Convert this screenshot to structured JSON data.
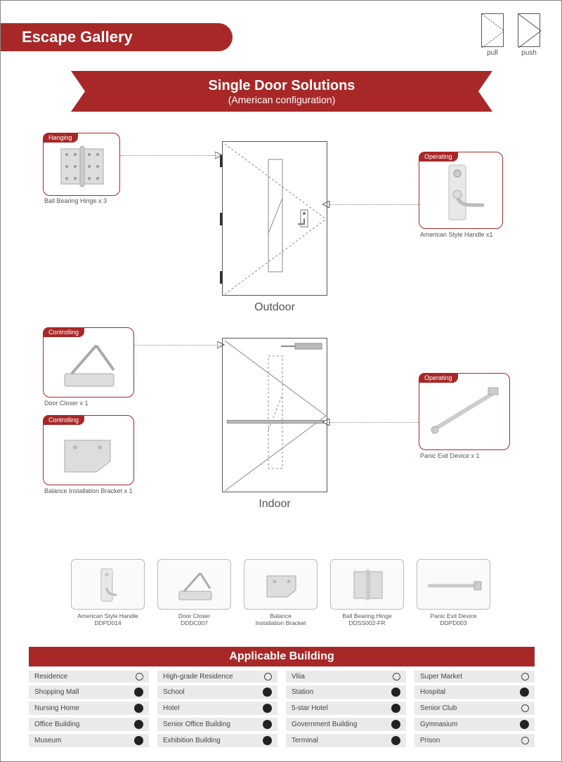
{
  "header": {
    "title": "Escape Gallery"
  },
  "icons": {
    "pull": "pull",
    "push": "push"
  },
  "ribbon": {
    "title": "Single Door Solutions",
    "subtitle": "(American configuration)"
  },
  "sections": {
    "outdoor": "Outdoor",
    "indoor": "Indoor"
  },
  "components": {
    "hanging": {
      "tag": "Hanging",
      "label": "Ball Bearing Hinge x 3"
    },
    "operating1": {
      "tag": "Operating",
      "label": "American Style Handle x1"
    },
    "controlling1": {
      "tag": "Controlling",
      "label": "Door Closer x 1"
    },
    "controlling2": {
      "tag": "Controlling",
      "label": "Balance Installation Bracket x 1"
    },
    "operating2": {
      "tag": "Operating",
      "label": "Panic Exit Device x 1"
    }
  },
  "products": [
    {
      "name": "American Style Handle",
      "code": "DDPD014"
    },
    {
      "name": "Door Closer",
      "code": "DDDC007"
    },
    {
      "name": "Balance\nInstallation Bracket",
      "code": ""
    },
    {
      "name": "Ball Bearing Hinge",
      "code": "DDSS002-FR"
    },
    {
      "name": "Panic Exit Device",
      "code": "DDPD003"
    }
  ],
  "table": {
    "header": "Applicable Building",
    "rows": [
      [
        {
          "name": "Residence",
          "filled": false
        },
        {
          "name": "High-grade Residence",
          "filled": false
        },
        {
          "name": "Vliia",
          "filled": false
        },
        {
          "name": "Super Market",
          "filled": false
        }
      ],
      [
        {
          "name": "Shopping Mall",
          "filled": true
        },
        {
          "name": "School",
          "filled": true
        },
        {
          "name": "Station",
          "filled": true
        },
        {
          "name": "Hospital",
          "filled": true
        }
      ],
      [
        {
          "name": "Nursing Home",
          "filled": true
        },
        {
          "name": "Hotel",
          "filled": true
        },
        {
          "name": "5-star Hotel",
          "filled": true
        },
        {
          "name": "Senior Club",
          "filled": false
        }
      ],
      [
        {
          "name": "Office Building",
          "filled": true
        },
        {
          "name": "Senior Office Building",
          "filled": true
        },
        {
          "name": "Government Building",
          "filled": true
        },
        {
          "name": "Gymnasium",
          "filled": true
        }
      ],
      [
        {
          "name": "Museum",
          "filled": true
        },
        {
          "name": "Exhibition Building",
          "filled": true
        },
        {
          "name": "Terminal",
          "filled": true
        },
        {
          "name": "Prison",
          "filled": false
        }
      ]
    ]
  },
  "colors": {
    "brand": "#a82828",
    "gray": "#eaeaea"
  }
}
